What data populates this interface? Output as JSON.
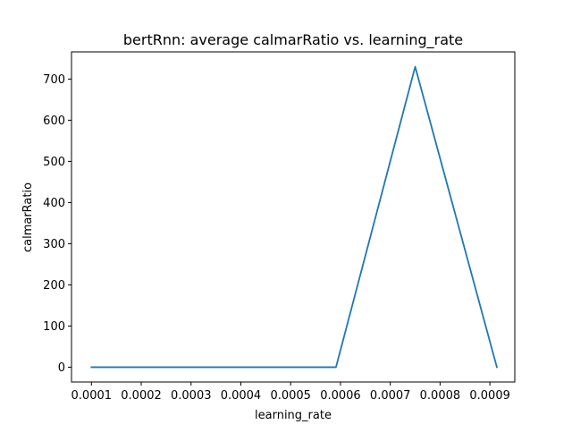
{
  "chart_data": {
    "type": "line",
    "title": "bertRnn: average calmarRatio vs. learning_rate",
    "xlabel": "learning_rate",
    "ylabel": "calmarRatio",
    "xlim": [
      6e-05,
      0.00095
    ],
    "ylim": [
      -36,
      766
    ],
    "grid": false,
    "x_ticks": [
      0.0001,
      0.0002,
      0.0003,
      0.0004,
      0.0005,
      0.0006,
      0.0007,
      0.0008,
      0.0009
    ],
    "x_tick_labels": [
      "0.0001",
      "0.0002",
      "0.0003",
      "0.0004",
      "0.0005",
      "0.0006",
      "0.0007",
      "0.0008",
      "0.0009"
    ],
    "y_ticks": [
      0,
      100,
      200,
      300,
      400,
      500,
      600,
      700
    ],
    "y_tick_labels": [
      "0",
      "100",
      "200",
      "300",
      "400",
      "500",
      "600",
      "700"
    ],
    "series": [
      {
        "color": "#1f77b4",
        "x": [
          0.0001,
          0.000591,
          0.00075,
          0.000914
        ],
        "y": [
          0,
          0,
          730,
          0
        ]
      }
    ]
  }
}
